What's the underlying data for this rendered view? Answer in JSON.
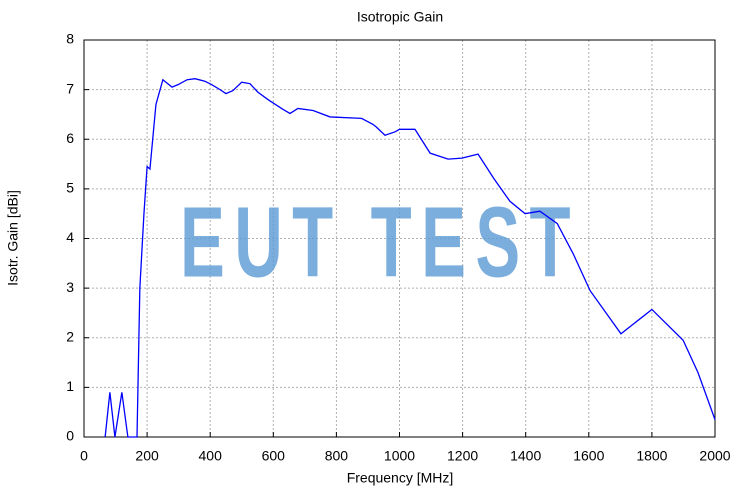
{
  "chart_data": {
    "type": "line",
    "title": "Isotropic Gain",
    "xlabel": "Frequency [MHz]",
    "ylabel": "Isotr. Gain [dBi]",
    "watermark": "EUT TEST",
    "x": [
      67,
      82,
      98,
      120,
      139,
      168,
      177,
      190,
      200,
      209,
      228,
      250,
      279,
      298,
      327,
      352,
      383,
      405,
      431,
      450,
      472,
      500,
      526,
      551,
      583,
      631,
      653,
      678,
      726,
      780,
      880,
      916,
      926,
      954,
      986,
      1000,
      1049,
      1097,
      1154,
      1198,
      1249,
      1300,
      1350,
      1398,
      1445,
      1500,
      1550,
      1604,
      1702,
      1800,
      1899,
      1946,
      2000
    ],
    "series": [
      {
        "name": "Isotropic Gain",
        "color": "#0000ff",
        "values": [
          0,
          0.9,
          0,
          0.9,
          0,
          0,
          3,
          4.5,
          5.45,
          5.4,
          6.7,
          7.2,
          7.05,
          7.1,
          7.2,
          7.22,
          7.17,
          7.1,
          7.0,
          6.92,
          6.98,
          7.15,
          7.12,
          6.95,
          6.8,
          6.6,
          6.52,
          6.62,
          6.58,
          6.45,
          6.42,
          6.3,
          6.25,
          6.08,
          6.15,
          6.2,
          6.2,
          5.72,
          5.6,
          5.62,
          5.7,
          5.2,
          4.75,
          4.5,
          4.55,
          4.3,
          3.7,
          2.95,
          2.08,
          2.57,
          1.95,
          1.3,
          0.35
        ]
      }
    ],
    "xlim": [
      0,
      2000
    ],
    "xticks": [
      0,
      200,
      400,
      600,
      800,
      1000,
      1200,
      1400,
      1600,
      1800,
      2000
    ],
    "ylim": [
      0,
      8
    ],
    "yticks": [
      0,
      1,
      2,
      3,
      4,
      5,
      6,
      7,
      8
    ],
    "grid": true
  }
}
